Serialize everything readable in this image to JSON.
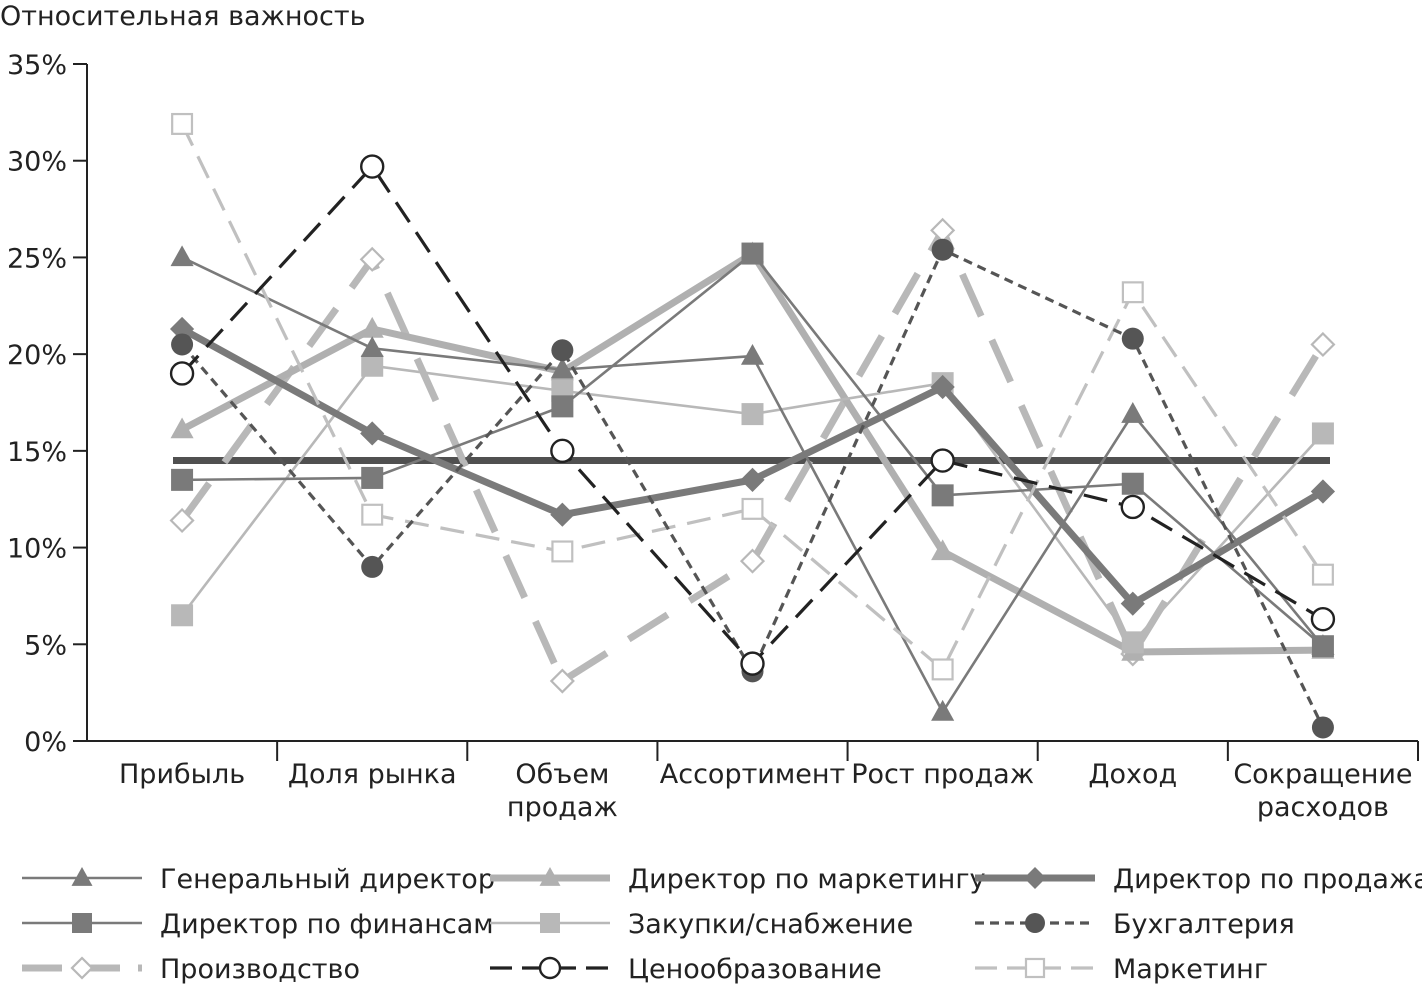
{
  "chart_data": {
    "type": "line",
    "title": "",
    "ylabel": "Относительная важность",
    "xlabel": "",
    "ylim": [
      0,
      35
    ],
    "yticks": [
      0,
      5,
      10,
      15,
      20,
      25,
      30,
      35
    ],
    "ytick_labels": [
      "0%",
      "5%",
      "10%",
      "15%",
      "20%",
      "25%",
      "30%",
      "35%"
    ],
    "categories": [
      [
        "Прибыль"
      ],
      [
        "Доля рынка"
      ],
      [
        "Объем",
        "продаж"
      ],
      [
        "Ассортимент"
      ],
      [
        "Рост продаж"
      ],
      [
        "Доход"
      ],
      [
        "Сокращение",
        "расходов"
      ]
    ],
    "reference_line": {
      "value": 14.5,
      "color": "#505050"
    },
    "grid": false,
    "legend_position": "bottom",
    "series": [
      {
        "name": "Генеральный директор",
        "values": [
          25,
          20.3,
          19.2,
          19.9,
          1.5,
          16.9,
          4.9
        ],
        "marker": "triangle",
        "color": "#7a7a7a",
        "style": "solid",
        "width": "thin"
      },
      {
        "name": "Директор по финансам",
        "values": [
          13.5,
          13.6,
          17.3,
          25.2,
          12.7,
          13.3,
          4.9
        ],
        "marker": "square",
        "color": "#7a7a7a",
        "style": "solid",
        "width": "thin"
      },
      {
        "name": "Производство",
        "values": [
          11.4,
          24.9,
          3.1,
          9.3,
          26.4,
          4.5,
          20.5
        ],
        "marker": "diamond-open",
        "color": "#b8b8b8",
        "style": "long-dash",
        "width": "thick"
      },
      {
        "name": "Директор по маркетингу",
        "values": [
          16.1,
          21.3,
          19.1,
          25.2,
          9.8,
          4.6,
          4.7
        ],
        "marker": "triangle",
        "color": "#b0b0b0",
        "style": "solid",
        "width": "thick"
      },
      {
        "name": "Закупки/снабжение",
        "values": [
          6.5,
          19.4,
          18.1,
          16.9,
          18.5,
          5.1,
          15.9
        ],
        "marker": "square",
        "color": "#b8b8b8",
        "style": "solid",
        "width": "thin"
      },
      {
        "name": "Ценообразование",
        "values": [
          19,
          29.7,
          15,
          4,
          14.5,
          12.1,
          6.3
        ],
        "marker": "circle-open",
        "color": "#222222",
        "style": "dash",
        "width": "medium"
      },
      {
        "name": "Директор по продажам",
        "values": [
          21.3,
          15.9,
          11.7,
          13.5,
          18.3,
          7.1,
          12.9
        ],
        "marker": "diamond",
        "color": "#7a7a7a",
        "style": "solid",
        "width": "thick"
      },
      {
        "name": "Бухгалтерия",
        "values": [
          20.5,
          9,
          20.2,
          3.6,
          25.4,
          20.8,
          0.7
        ],
        "marker": "circle",
        "color": "#555555",
        "style": "short-dash",
        "width": "medium"
      },
      {
        "name": "Маркетинг",
        "values": [
          31.9,
          11.7,
          9.8,
          12,
          3.7,
          23.2,
          8.6
        ],
        "marker": "square-open",
        "color": "#c0c0c0",
        "style": "dash",
        "width": "medium"
      }
    ]
  }
}
